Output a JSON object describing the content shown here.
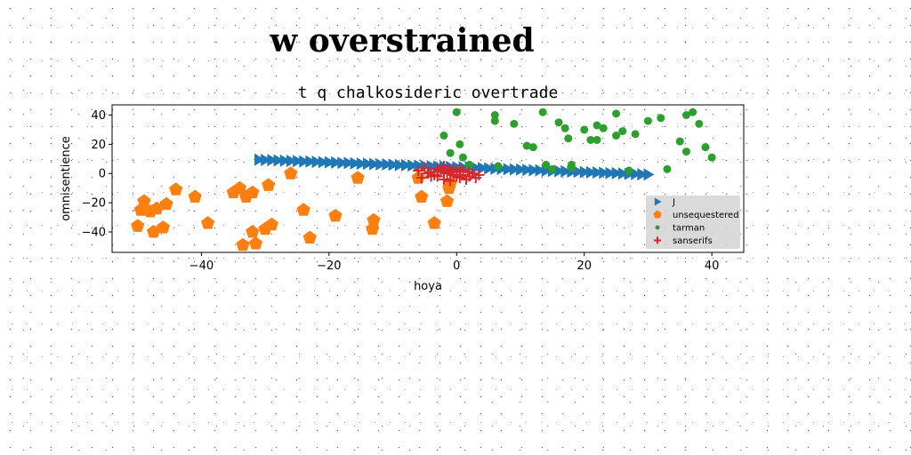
{
  "page": {
    "title": "w overstrained"
  },
  "chart_data": {
    "type": "scatter",
    "subtitle": "t q chalkosideric overtrade",
    "xlabel": "hoya",
    "ylabel": "omnisentience",
    "xlim": [
      -54,
      45
    ],
    "ylim": [
      -54,
      47
    ],
    "xticks": [
      -40,
      -20,
      0,
      20,
      40
    ],
    "yticks": [
      -40,
      -20,
      0,
      20,
      40
    ],
    "grid": false,
    "legend_position": "lower-right",
    "series": [
      {
        "name": "J",
        "marker": "triangle-right",
        "color": "#1f77b4",
        "x": [
          -31,
          -30,
          -29,
          -28,
          -27,
          -26,
          -25,
          -24,
          -23,
          -22,
          -21,
          -20,
          -19,
          -18,
          -17,
          -16,
          -15,
          -14,
          -13,
          -12,
          -11,
          -10,
          -9,
          -8,
          -7,
          -6,
          -5,
          -4,
          -3,
          -2,
          -1,
          0,
          1,
          2,
          3,
          4,
          5,
          6,
          7,
          8,
          9,
          10,
          11,
          12,
          13,
          14,
          15,
          16,
          17,
          18,
          19,
          20,
          21,
          22,
          23,
          24,
          25,
          26,
          27,
          28,
          29,
          30
        ],
        "y": [
          9.5,
          9.3,
          9.2,
          9.0,
          8.8,
          8.7,
          8.5,
          8.3,
          8.2,
          8.0,
          7.8,
          7.7,
          7.5,
          7.3,
          7.2,
          7.0,
          6.8,
          6.7,
          6.5,
          6.3,
          6.2,
          6.0,
          5.8,
          5.7,
          5.5,
          5.3,
          5.2,
          5.0,
          4.8,
          4.7,
          4.5,
          4.3,
          4.2,
          4.0,
          3.8,
          3.7,
          3.5,
          3.3,
          3.2,
          3.0,
          2.8,
          2.7,
          2.5,
          2.3,
          2.2,
          2.0,
          1.8,
          1.7,
          1.5,
          1.3,
          1.2,
          1.0,
          0.8,
          0.7,
          0.5,
          0.3,
          0.2,
          0.0,
          -0.2,
          -0.3,
          -0.5,
          -0.7
        ]
      },
      {
        "name": "unsequestered",
        "marker": "pentagon",
        "color": "#ff7f0e",
        "x": [
          -50,
          -49.5,
          -49,
          -48,
          -47.5,
          -47,
          -46,
          -45.5,
          -44,
          -41,
          -39,
          -35,
          -34,
          -33.5,
          -33,
          -32,
          -32,
          -31.5,
          -30,
          -29.5,
          -29,
          -26,
          -24,
          -23,
          -19,
          -15.5,
          -13,
          -13.2,
          -6,
          -5.5,
          -3.5,
          -1.5,
          -1.2,
          -1
        ],
        "y": [
          -36,
          -25,
          -19,
          -26,
          -40,
          -24,
          -37,
          -21,
          -11,
          -16,
          -34,
          -13,
          -10,
          -49,
          -16,
          -13,
          -40,
          -48,
          -38,
          -8,
          -35,
          0,
          -25,
          -44,
          -29,
          -3,
          -32,
          -38,
          -3,
          -16,
          -34,
          -19,
          -10,
          -7
        ]
      },
      {
        "name": "tarman",
        "marker": "circle",
        "color": "#2ca02c",
        "x": [
          0,
          0.5,
          -2,
          -1,
          1,
          2,
          6,
          6,
          6.5,
          9,
          11,
          12,
          13.5,
          14,
          15,
          16,
          17,
          17.5,
          18,
          18,
          20,
          21,
          22,
          22,
          23,
          25,
          25,
          26,
          27,
          28,
          30,
          32,
          33,
          35,
          36,
          36,
          37,
          38,
          39,
          40
        ],
        "y": [
          42,
          20,
          26,
          14,
          11,
          6,
          40,
          36,
          5,
          34,
          19,
          18,
          42,
          6,
          3,
          35,
          31,
          24,
          6,
          4,
          30,
          23,
          23,
          33,
          31,
          26,
          41,
          29,
          2,
          27,
          36,
          38,
          3,
          22,
          40,
          15,
          42,
          34,
          18,
          11
        ]
      },
      {
        "name": "sanserifs",
        "marker": "plus",
        "color": "#d62728",
        "x": [
          -6,
          -5.5,
          -5,
          -4.5,
          -4,
          -3.5,
          -3,
          -3,
          -2.5,
          -2,
          -2,
          -1.5,
          -1,
          -1,
          -0.5,
          -0.5,
          0,
          0,
          0.5,
          0.5,
          1,
          1,
          1.5,
          2,
          2,
          2.5,
          3,
          3.5,
          -4,
          -2
        ],
        "y": [
          2,
          -3,
          4,
          0,
          1,
          -1,
          3,
          -2,
          2,
          -4,
          1,
          0,
          3,
          -5,
          -1,
          2,
          1,
          -2,
          3,
          -3,
          -1,
          2,
          -4,
          1,
          -2,
          0,
          -3,
          -1,
          -2,
          5
        ]
      }
    ]
  }
}
